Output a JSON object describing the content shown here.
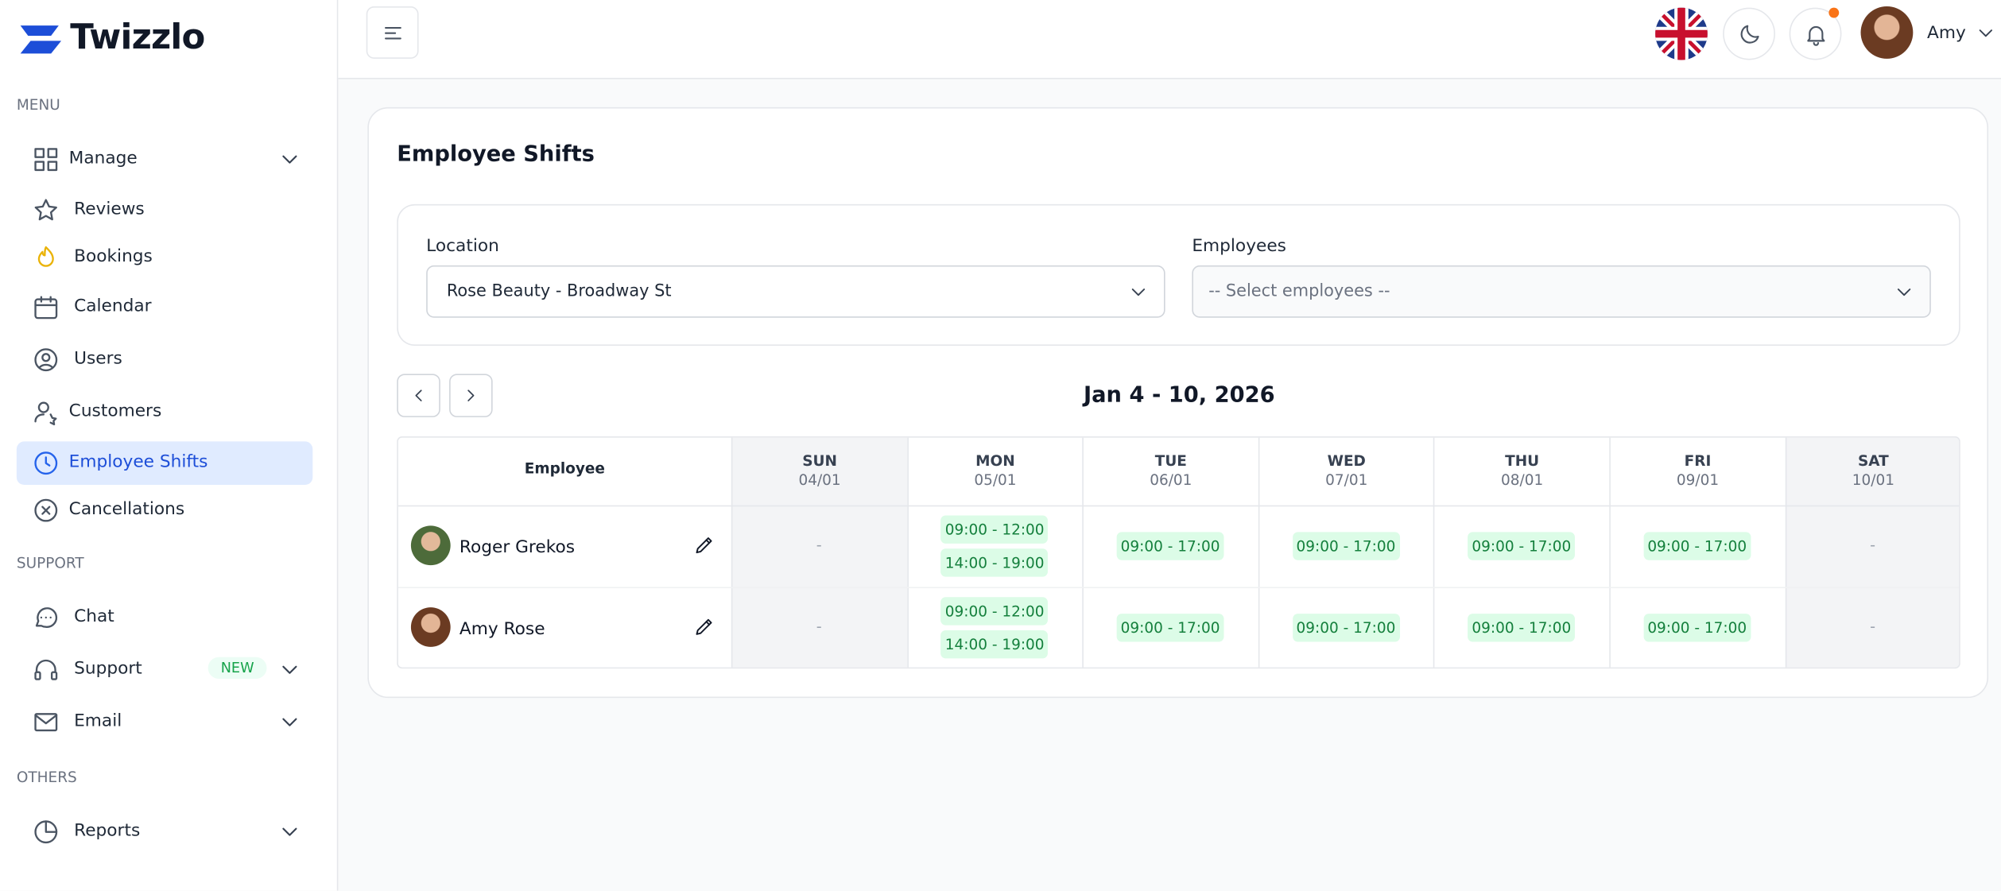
{
  "brand": "Twizzlo",
  "sidebar": {
    "sections": [
      {
        "title": "MENU",
        "items": [
          {
            "label": "Manage",
            "expandable": true
          },
          {
            "label": "Reviews"
          },
          {
            "label": "Bookings"
          },
          {
            "label": "Calendar"
          },
          {
            "label": "Users"
          },
          {
            "label": "Customers"
          },
          {
            "label": "Employee Shifts",
            "active": true
          },
          {
            "label": "Cancellations"
          }
        ]
      },
      {
        "title": "SUPPORT",
        "items": [
          {
            "label": "Chat"
          },
          {
            "label": "Support",
            "badge": "NEW",
            "expandable": true
          },
          {
            "label": "Email",
            "expandable": true
          }
        ]
      },
      {
        "title": "OTHERS",
        "items": [
          {
            "label": "Reports",
            "expandable": true
          }
        ]
      }
    ]
  },
  "topbar": {
    "user": "Amy"
  },
  "page": {
    "title": "Employee Shifts",
    "filters": {
      "location": {
        "label": "Location",
        "value": "Rose Beauty - Broadway St"
      },
      "employees": {
        "label": "Employees",
        "placeholder": "-- Select employees --"
      }
    },
    "week": "Jan 4 - 10, 2026",
    "table": {
      "header": "Employee",
      "days": [
        {
          "day": "SUN",
          "date": "04/01",
          "weekend": true
        },
        {
          "day": "MON",
          "date": "05/01"
        },
        {
          "day": "TUE",
          "date": "06/01"
        },
        {
          "day": "WED",
          "date": "07/01"
        },
        {
          "day": "THU",
          "date": "08/01"
        },
        {
          "day": "FRI",
          "date": "09/01"
        },
        {
          "day": "SAT",
          "date": "10/01",
          "weekend": true
        }
      ],
      "rows": [
        {
          "name": "Roger Grekos",
          "cells": [
            "-",
            [
              "09:00 - 12:00",
              "14:00 - 19:00"
            ],
            [
              "09:00 - 17:00"
            ],
            [
              "09:00 - 17:00"
            ],
            [
              "09:00 - 17:00"
            ],
            [
              "09:00 - 17:00"
            ],
            "-"
          ]
        },
        {
          "name": "Amy Rose",
          "cells": [
            "-",
            [
              "09:00 - 12:00",
              "14:00 - 19:00"
            ],
            [
              "09:00 - 17:00"
            ],
            [
              "09:00 - 17:00"
            ],
            [
              "09:00 - 17:00"
            ],
            [
              "09:00 - 17:00"
            ],
            "-"
          ]
        }
      ]
    }
  }
}
